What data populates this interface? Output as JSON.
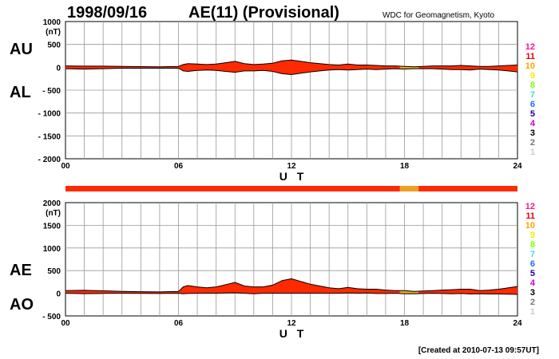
{
  "header": {
    "date": "1998/09/16",
    "title": "AE(11) (Provisional)",
    "source": "WDC for Geomagnetism, Kyoto"
  },
  "footer": {
    "created": "[Created at 2010-07-13 09:57UT]"
  },
  "legend": {
    "items": [
      {
        "label": "12",
        "color": "#ff1493"
      },
      {
        "label": "11",
        "color": "#e8000b"
      },
      {
        "label": "10",
        "color": "#ffa500"
      },
      {
        "label": "9",
        "color": "#f0f000"
      },
      {
        "label": "8",
        "color": "#7fff00"
      },
      {
        "label": "7",
        "color": "#40e0d0"
      },
      {
        "label": "6",
        "color": "#1e6cff"
      },
      {
        "label": "5",
        "color": "#1a00a0"
      },
      {
        "label": "4",
        "color": "#cc00cc"
      },
      {
        "label": "3",
        "color": "#000000"
      },
      {
        "label": "2",
        "color": "#777777"
      },
      {
        "label": "1",
        "color": "#cccccc"
      }
    ]
  },
  "colors": {
    "fill_main": "#ff2a00",
    "fill_alt": "#f0a020",
    "status_bar": "#ff2a00",
    "status_bar_alt": "#f0a020"
  },
  "status_bar": {
    "alt_range_hours": [
      17.75,
      18.75
    ]
  },
  "chart_data": [
    {
      "type": "area",
      "unit": "(nT)",
      "side_labels": [
        "AU",
        "AL"
      ],
      "xlabel": "U T",
      "x_ticks": [
        "00",
        "06",
        "12",
        "18",
        "24"
      ],
      "xlim": [
        0,
        24
      ],
      "ylim": [
        -2000,
        1000
      ],
      "y_ticks": [
        "1000",
        "500",
        "0",
        "- 500",
        "- 1000",
        "- 1500",
        "- 2000"
      ],
      "y_tick_values": [
        1000,
        500,
        0,
        -500,
        -1000,
        -1500,
        -2000
      ],
      "grid": true,
      "alt_color_range_hours": [
        17.75,
        18.75
      ],
      "x": [
        0,
        1,
        2,
        3,
        4,
        5,
        6,
        6.25,
        6.5,
        7,
        7.5,
        8,
        8.5,
        9,
        9.5,
        10,
        10.5,
        11,
        11.5,
        12,
        12.5,
        13,
        13.5,
        14,
        14.5,
        15,
        15.5,
        16,
        16.5,
        17,
        17.5,
        18,
        18.5,
        19,
        19.5,
        20,
        20.5,
        21,
        21.5,
        22,
        22.5,
        23,
        23.5,
        24
      ],
      "series": [
        {
          "name": "AU",
          "values": [
            30,
            25,
            25,
            20,
            15,
            10,
            20,
            60,
            80,
            70,
            60,
            70,
            100,
            130,
            80,
            60,
            70,
            90,
            140,
            160,
            130,
            100,
            80,
            60,
            50,
            70,
            50,
            50,
            40,
            30,
            30,
            20,
            10,
            20,
            30,
            30,
            30,
            40,
            30,
            20,
            20,
            30,
            40,
            50
          ]
        },
        {
          "name": "AL",
          "values": [
            -30,
            -40,
            -30,
            -20,
            -20,
            -20,
            -20,
            -80,
            -90,
            -70,
            -60,
            -70,
            -90,
            -110,
            -80,
            -80,
            -70,
            -90,
            -140,
            -160,
            -130,
            -100,
            -80,
            -60,
            -50,
            -60,
            -50,
            -40,
            -50,
            -40,
            -30,
            -40,
            -30,
            -30,
            -30,
            -40,
            -50,
            -50,
            -60,
            -40,
            -50,
            -60,
            -80,
            -100
          ]
        }
      ]
    },
    {
      "type": "area",
      "unit": "(nT)",
      "side_labels": [
        "AE",
        "AO"
      ],
      "xlabel": "U T",
      "x_ticks": [
        "00",
        "06",
        "12",
        "18",
        "24"
      ],
      "xlim": [
        0,
        24
      ],
      "ylim": [
        -500,
        2000
      ],
      "y_ticks": [
        "2000",
        "1500",
        "1000",
        "500",
        "0",
        "- 500"
      ],
      "y_tick_values": [
        2000,
        1500,
        1000,
        500,
        0,
        -500
      ],
      "grid": true,
      "alt_color_range_hours": [
        17.75,
        18.75
      ],
      "x": [
        0,
        1,
        2,
        3,
        4,
        5,
        6,
        6.25,
        6.5,
        7,
        7.5,
        8,
        8.5,
        9,
        9.5,
        10,
        10.5,
        11,
        11.5,
        12,
        12.5,
        13,
        13.5,
        14,
        14.5,
        15,
        15.5,
        16,
        16.5,
        17,
        17.5,
        18,
        18.5,
        19,
        19.5,
        20,
        20.5,
        21,
        21.5,
        22,
        22.5,
        23,
        23.5,
        24
      ],
      "series": [
        {
          "name": "AE",
          "values": [
            60,
            65,
            55,
            40,
            35,
            30,
            40,
            140,
            170,
            140,
            120,
            140,
            190,
            240,
            160,
            140,
            140,
            180,
            280,
            320,
            260,
            200,
            160,
            120,
            100,
            130,
            100,
            90,
            90,
            70,
            60,
            60,
            40,
            50,
            60,
            70,
            80,
            90,
            90,
            60,
            70,
            90,
            120,
            150
          ]
        },
        {
          "name": "AO",
          "values": [
            0,
            -8,
            -3,
            0,
            -3,
            -5,
            0,
            -10,
            -5,
            0,
            0,
            0,
            5,
            10,
            0,
            -10,
            0,
            0,
            0,
            0,
            0,
            0,
            0,
            0,
            0,
            5,
            0,
            5,
            -5,
            -5,
            0,
            -10,
            -10,
            -5,
            0,
            -5,
            -10,
            -5,
            -15,
            -10,
            -15,
            -15,
            -20,
            -25
          ]
        }
      ]
    }
  ]
}
